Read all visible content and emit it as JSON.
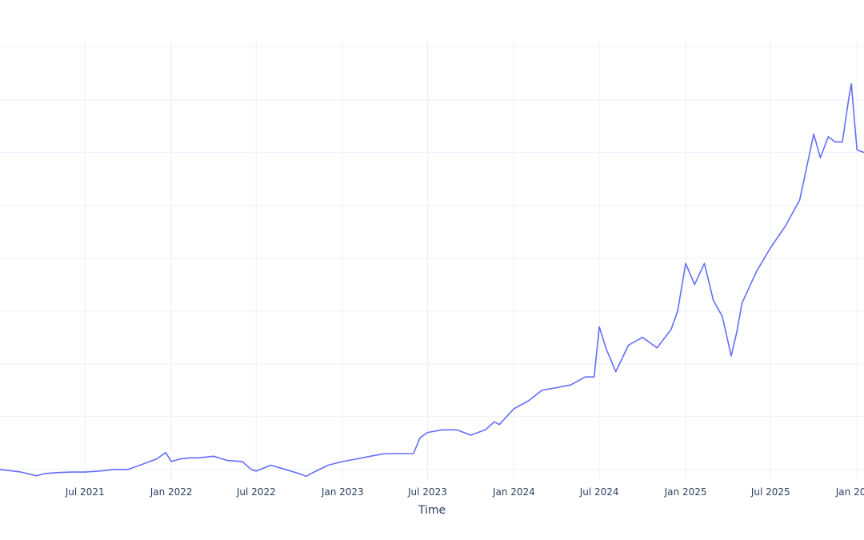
{
  "chart_data": {
    "type": "line",
    "title": "",
    "xlabel": "Time",
    "ylabel": "",
    "grid": true,
    "legend": "none",
    "xlim": [
      "2021-01-01",
      "2026-01-16"
    ],
    "ylim": [
      1.8,
      10.13
    ],
    "x_ticks": [
      {
        "date": "2021-07-01",
        "label": "Jul 2021"
      },
      {
        "date": "2022-01-01",
        "label": "Jan 2022"
      },
      {
        "date": "2022-07-01",
        "label": "Jul 2022"
      },
      {
        "date": "2023-01-01",
        "label": "Jan 2023"
      },
      {
        "date": "2023-07-01",
        "label": "Jul 2023"
      },
      {
        "date": "2024-01-01",
        "label": "Jan 2024"
      },
      {
        "date": "2024-07-01",
        "label": "Jul 2024"
      },
      {
        "date": "2025-01-01",
        "label": "Jan 2025"
      },
      {
        "date": "2025-07-01",
        "label": "Jul 2025"
      },
      {
        "date": "2026-01-01",
        "label": "Jan 2026"
      }
    ],
    "y_gridlines": [
      2,
      3,
      4,
      5,
      6,
      7,
      8,
      9,
      10
    ],
    "line_color": "#636efa",
    "series": [
      {
        "x": [
          "2021-01-01",
          "2021-02-15",
          "2021-03-20",
          "2021-04-05",
          "2021-05-01",
          "2021-06-01",
          "2021-07-01",
          "2021-08-01",
          "2021-09-01",
          "2021-10-01",
          "2021-11-01",
          "2021-12-01",
          "2021-12-20",
          "2022-01-01",
          "2022-01-20",
          "2022-02-10",
          "2022-03-01",
          "2022-04-01",
          "2022-05-01",
          "2022-06-01",
          "2022-06-20",
          "2022-07-01",
          "2022-08-01",
          "2022-09-01",
          "2022-10-01",
          "2022-10-15",
          "2022-11-01",
          "2022-12-01",
          "2023-01-01",
          "2023-02-01",
          "2023-03-01",
          "2023-04-01",
          "2023-05-01",
          "2023-06-01",
          "2023-06-15",
          "2023-07-01",
          "2023-08-01",
          "2023-09-01",
          "2023-10-01",
          "2023-11-01",
          "2023-11-20",
          "2023-12-01",
          "2024-01-01",
          "2024-02-01",
          "2024-03-01",
          "2024-04-01",
          "2024-05-01",
          "2024-06-01",
          "2024-06-20",
          "2024-07-01",
          "2024-07-15",
          "2024-08-05",
          "2024-09-01",
          "2024-10-01",
          "2024-11-01",
          "2024-12-01",
          "2024-12-15",
          "2025-01-01",
          "2025-01-20",
          "2025-02-10",
          "2025-03-01",
          "2025-03-20",
          "2025-04-08",
          "2025-04-20",
          "2025-05-01",
          "2025-06-01",
          "2025-07-01",
          "2025-08-01",
          "2025-09-01",
          "2025-10-01",
          "2025-10-15",
          "2025-11-01",
          "2025-11-15",
          "2025-12-01",
          "2025-12-15",
          "2025-12-20",
          "2026-01-01",
          "2026-01-16"
        ],
        "y": [
          2.0,
          1.95,
          1.88,
          1.92,
          1.94,
          1.95,
          1.95,
          1.97,
          2.0,
          2.0,
          2.1,
          2.2,
          2.32,
          2.15,
          2.2,
          2.22,
          2.22,
          2.25,
          2.17,
          2.15,
          2.0,
          1.97,
          2.08,
          2.0,
          1.92,
          1.87,
          1.95,
          2.08,
          2.15,
          2.2,
          2.25,
          2.3,
          2.3,
          2.3,
          2.6,
          2.7,
          2.75,
          2.75,
          2.65,
          2.75,
          2.9,
          2.85,
          3.15,
          3.3,
          3.5,
          3.55,
          3.6,
          3.75,
          3.75,
          4.7,
          4.3,
          3.85,
          4.35,
          4.5,
          4.3,
          4.65,
          5.0,
          5.9,
          5.5,
          5.9,
          5.2,
          4.9,
          4.15,
          4.6,
          5.15,
          5.75,
          6.2,
          6.6,
          7.1,
          8.35,
          7.9,
          8.3,
          8.2,
          8.2,
          9.05,
          9.3,
          8.05,
          8.0
        ]
      }
    ]
  }
}
